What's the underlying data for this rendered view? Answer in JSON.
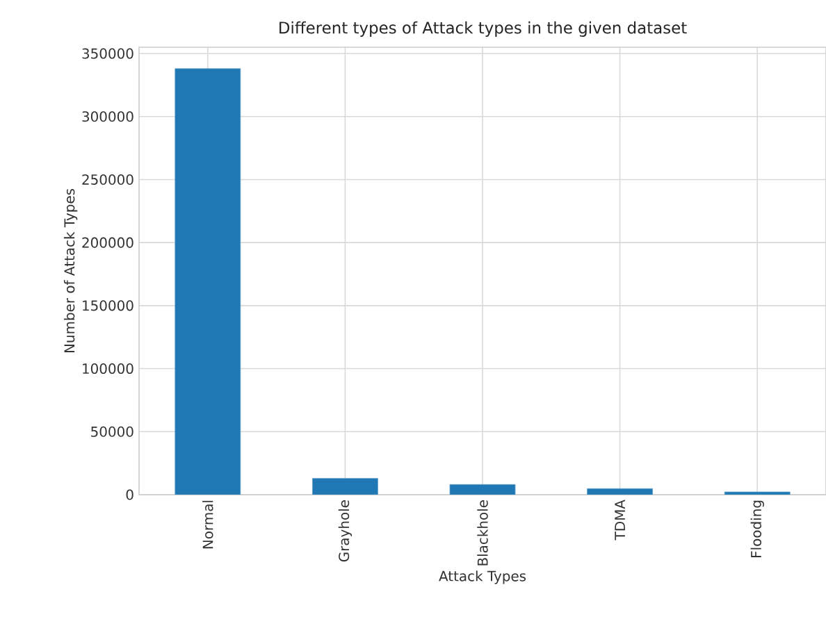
{
  "chart_data": {
    "type": "bar",
    "title": "Different types of Attack types in the given dataset",
    "xlabel": "Attack Types",
    "ylabel": "Number of Attack Types",
    "categories": [
      "Normal",
      "Grayhole",
      "Blackhole",
      "TDMA",
      "Flooding"
    ],
    "values": [
      338000,
      13000,
      8100,
      4800,
      2200
    ],
    "color": "#1f77b4",
    "ylim": [
      0,
      355000
    ],
    "yticks": [
      0,
      50000,
      100000,
      150000,
      200000,
      250000,
      300000,
      350000
    ],
    "grid": true
  }
}
